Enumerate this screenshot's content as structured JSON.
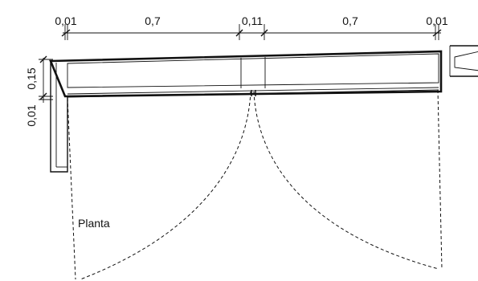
{
  "dimensions": {
    "top": [
      "0,01",
      "0,7",
      "0,11",
      "0,7",
      "0,01"
    ],
    "side": [
      "0,15",
      "0,01"
    ]
  },
  "caption": "Planta"
}
